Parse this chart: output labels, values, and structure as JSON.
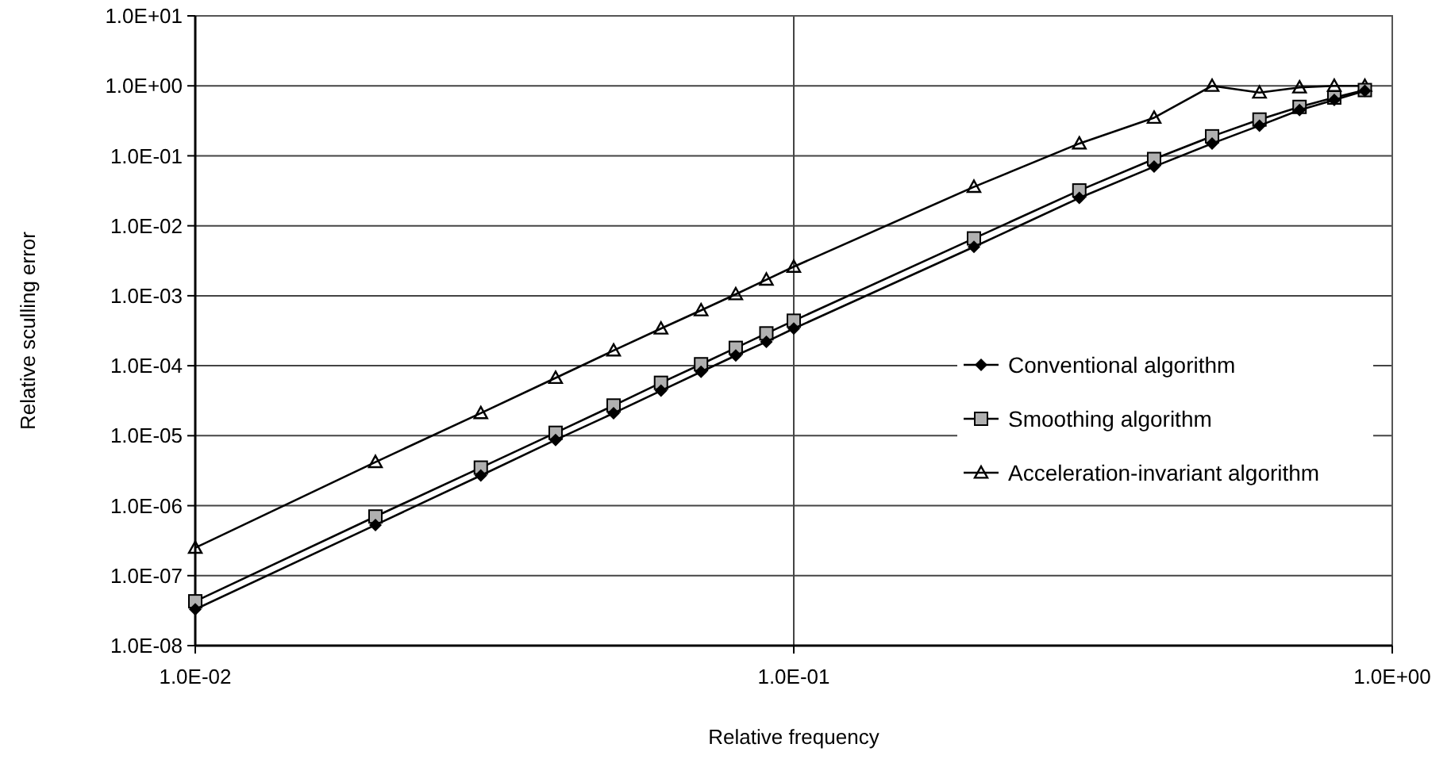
{
  "chart_data": {
    "type": "line",
    "xlabel": "Relative frequency",
    "ylabel": "Relative sculling error",
    "log": "xy",
    "grid": true,
    "legend": "right",
    "xlim": [
      0.01,
      1
    ],
    "ylim": [
      1e-08,
      10
    ],
    "xticks": [
      {
        "value": 0.01,
        "label": "1.0E-02"
      },
      {
        "value": 0.1,
        "label": "1.0E-01"
      },
      {
        "value": 1,
        "label": "1.0E+00"
      }
    ],
    "yticks": [
      {
        "value": 1e-08,
        "label": "1.0E-08"
      },
      {
        "value": 1e-07,
        "label": "1.0E-07"
      },
      {
        "value": 1e-06,
        "label": "1.0E-06"
      },
      {
        "value": 1e-05,
        "label": "1.0E-05"
      },
      {
        "value": 0.0001,
        "label": "1.0E-04"
      },
      {
        "value": 0.001,
        "label": "1.0E-03"
      },
      {
        "value": 0.01,
        "label": "1.0E-02"
      },
      {
        "value": 0.1,
        "label": "1.0E-01"
      },
      {
        "value": 1,
        "label": "1.0E+00"
      },
      {
        "value": 10,
        "label": "1.0E+01"
      }
    ],
    "x": [
      0.01,
      0.02,
      0.03,
      0.04,
      0.05,
      0.06,
      0.07,
      0.08,
      0.09,
      0.1,
      0.2,
      0.3,
      0.4,
      0.5,
      0.6,
      0.7,
      0.8,
      0.9
    ],
    "series": [
      {
        "name": "Conventional algorithm",
        "color": "#000000",
        "marker": "diamond",
        "values": [
          3.3e-08,
          5.3e-07,
          2.7e-06,
          8.7e-06,
          2.1e-05,
          4.4e-05,
          8.2e-05,
          0.00014,
          0.00022,
          0.00034,
          0.005,
          0.025,
          0.07,
          0.15,
          0.27,
          0.45,
          0.63,
          0.85
        ]
      },
      {
        "name": "Smoothing algorithm",
        "color": "#000000",
        "marker": "square",
        "values": [
          4.3e-08,
          7e-07,
          3.5e-06,
          1.1e-05,
          2.7e-05,
          5.7e-05,
          0.000105,
          0.00018,
          0.00029,
          0.00044,
          0.0066,
          0.032,
          0.09,
          0.19,
          0.33,
          0.5,
          0.68,
          0.87
        ]
      },
      {
        "name": "Acceleration-invariant algorithm",
        "color": "#000000",
        "marker": "triangle",
        "values": [
          2.5e-07,
          4.2e-06,
          2.1e-05,
          6.7e-05,
          0.000165,
          0.00034,
          0.00062,
          0.00105,
          0.0017,
          0.0026,
          0.036,
          0.15,
          0.35,
          1.0,
          0.8,
          0.95,
          1.0,
          1.0
        ]
      }
    ]
  }
}
